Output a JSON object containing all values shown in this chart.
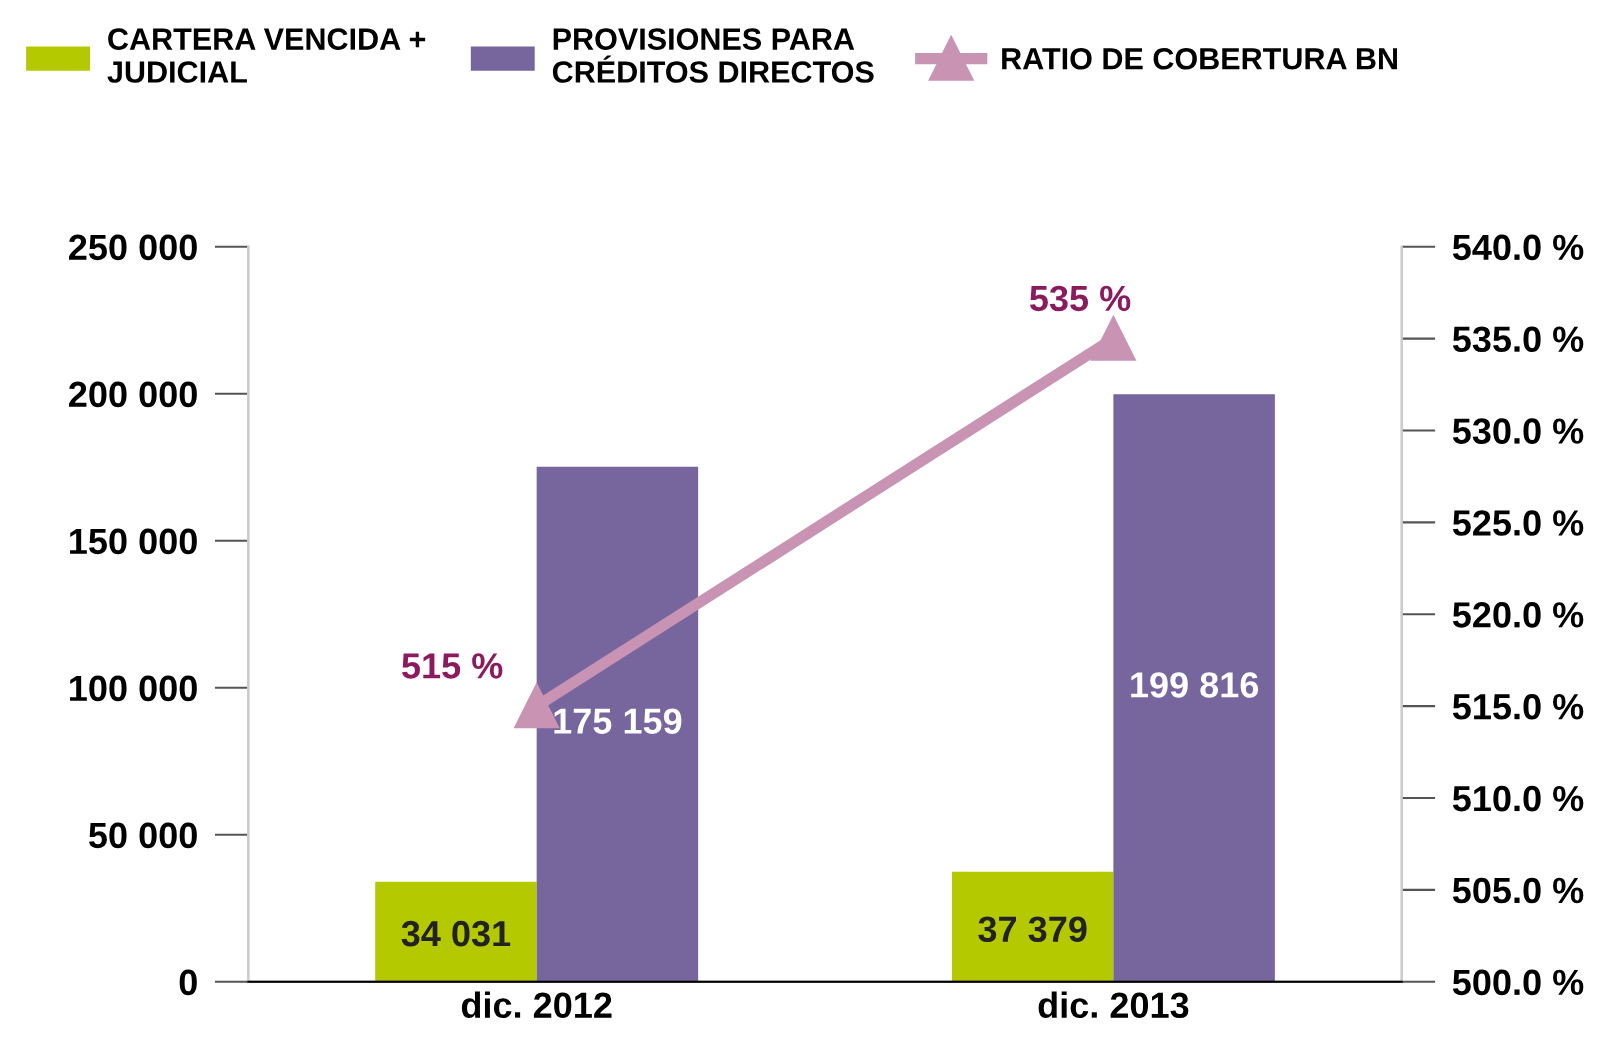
{
  "chart_data": {
    "type": "bar",
    "categories": [
      "dic. 2012",
      "dic. 2013"
    ],
    "series": [
      {
        "name": "CARTERA VENCIDA +\nJUDICIAL",
        "color": "#b5c900",
        "values": [
          34031,
          37379
        ],
        "value_labels": [
          "34 031",
          "37 379"
        ]
      },
      {
        "name": "PROVISIONES PARA\nCRÉDITOS DIRECTOS",
        "color": "#77659e",
        "values": [
          175159,
          199816
        ],
        "value_labels": [
          "175 159",
          "199 816"
        ]
      },
      {
        "name": "RATIO DE COBERTURA BN",
        "type": "line",
        "axis": "y2",
        "color": "#c994b4",
        "marker": "triangle",
        "values": [
          515,
          535
        ],
        "value_labels": [
          "515 %",
          "535 %"
        ]
      }
    ],
    "ylim": [
      0,
      250000
    ],
    "yticks": [
      {
        "value": 0,
        "label": "0"
      },
      {
        "value": 50000,
        "label": "50 000"
      },
      {
        "value": 100000,
        "label": "100 000"
      },
      {
        "value": 150000,
        "label": "150 000"
      },
      {
        "value": 200000,
        "label": "200 000"
      },
      {
        "value": 250000,
        "label": "250 000"
      }
    ],
    "y2lim": [
      500,
      540
    ],
    "y2ticks": [
      {
        "value": 500,
        "label": "500.0 %"
      },
      {
        "value": 505,
        "label": "505.0 %"
      },
      {
        "value": 510,
        "label": "510.0 %"
      },
      {
        "value": 515,
        "label": "515.0 %"
      },
      {
        "value": 520,
        "label": "520.0 %"
      },
      {
        "value": 525,
        "label": "525.0 %"
      },
      {
        "value": 530,
        "label": "530.0 %"
      },
      {
        "value": 535,
        "label": "535.0 %"
      },
      {
        "value": 540,
        "label": "540.0 %"
      }
    ],
    "grid": false,
    "legend": "top"
  }
}
